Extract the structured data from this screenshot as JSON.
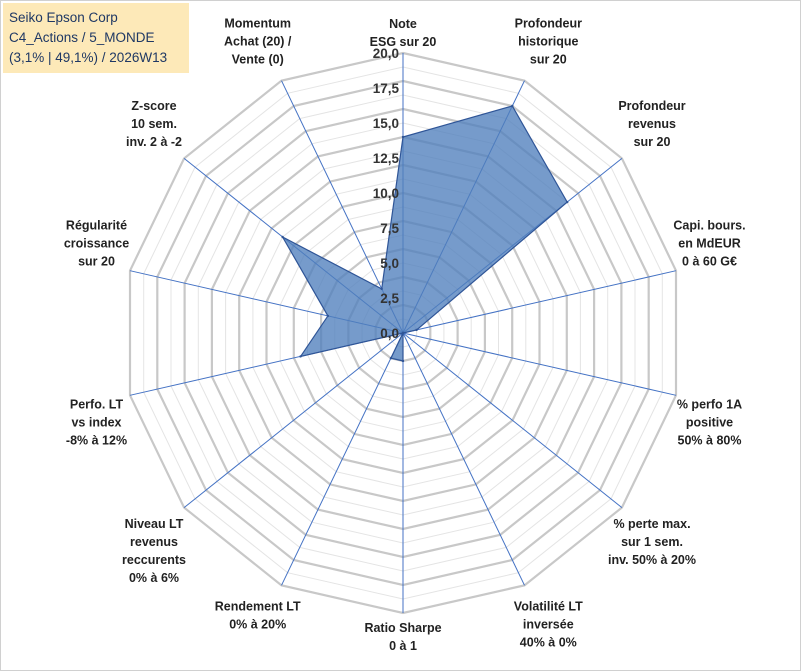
{
  "title": {
    "line1": "Seiko Epson Corp",
    "line2": "C4_Actions / 5_MONDE",
    "line3": "(3,1% | 49,1%) / 2026W13"
  },
  "colors": {
    "title_bg": "#fde9b8",
    "title_text": "#1f3864",
    "grid": "#c8c8c8",
    "spoke": "#4472c4",
    "fill": "#4f7fbc",
    "stroke": "#2f5597"
  },
  "chart_data": {
    "type": "radar",
    "rmin": 0,
    "rmax": 20,
    "ticks": [
      "0,0",
      "2,5",
      "5,0",
      "7,5",
      "10,0",
      "12,5",
      "15,0",
      "17,5",
      "20,0"
    ],
    "tick_values": [
      0,
      2.5,
      5,
      7.5,
      10,
      12.5,
      15,
      17.5,
      20
    ],
    "grid_rings": 20,
    "axes": [
      {
        "lines": [
          "Note",
          "ESG sur 20"
        ],
        "value": 14.0
      },
      {
        "lines": [
          "Profondeur",
          "historique",
          "sur 20"
        ],
        "value": 18.0
      },
      {
        "lines": [
          "Profondeur",
          "revenus",
          "sur 20"
        ],
        "value": 15.0
      },
      {
        "lines": [
          "Capi. bours.",
          "en MdEUR",
          "0 à 60 G€"
        ],
        "value": 1.0
      },
      {
        "lines": [
          "% perfo 1A",
          "positive",
          "50% à 80%"
        ],
        "value": 0.0
      },
      {
        "lines": [
          "% perte max.",
          "sur 1 sem.",
          "inv. 50% à 20%"
        ],
        "value": 0.0
      },
      {
        "lines": [
          "Volatilité LT",
          "inversée",
          "40% à 0%"
        ],
        "value": 0.0
      },
      {
        "lines": [
          "Ratio Sharpe",
          "0 à 1"
        ],
        "value": 2.0
      },
      {
        "lines": [
          "Rendement LT",
          "0% à 20%"
        ],
        "value": 2.0
      },
      {
        "lines": [
          "Niveau LT",
          "revenus",
          "reccurents",
          "0% à 6%"
        ],
        "value": 0.0
      },
      {
        "lines": [
          "Perfo. LT",
          "vs index",
          "-8% à 12%"
        ],
        "value": 7.5
      },
      {
        "lines": [
          "Régularité",
          "croissance",
          "sur 20"
        ],
        "value": 5.5
      },
      {
        "lines": [
          "Z-score",
          "10 sem.",
          "inv. 2 à -2"
        ],
        "value": 11.0
      },
      {
        "lines": [
          "Momentum",
          "Achat (20) /",
          "Vente (0)"
        ],
        "value": 3.5
      }
    ]
  }
}
